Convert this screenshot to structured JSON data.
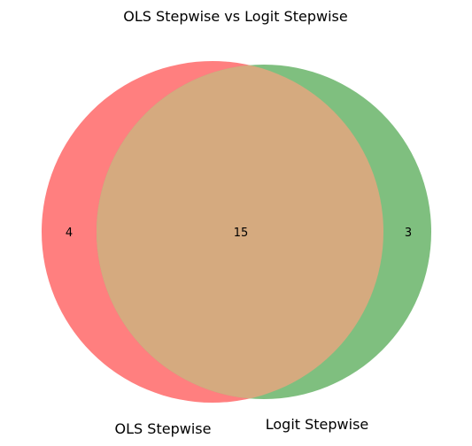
{
  "title": "OLS Stepwise vs Logit Stepwise",
  "venn": {
    "sets": [
      {
        "name": "OLS Stepwise",
        "only_count": "4",
        "color": "#ff7f7f"
      },
      {
        "name": "Logit Stepwise",
        "only_count": "3",
        "color": "#7fbf7f"
      }
    ],
    "intersection_count": "15",
    "intersection_color": "#d5aa7f"
  }
}
